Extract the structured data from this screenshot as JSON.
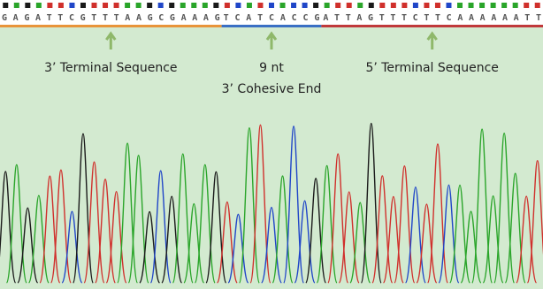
{
  "sequence": {
    "segments": [
      {
        "bases": "GAGATTCGTTTAAGCGAAAG",
        "color": "#e8943a"
      },
      {
        "bases": "TCATCACCG",
        "color": "#3a6fc4"
      },
      {
        "bases": "ATTAGTTTCTTCAAAAAATT",
        "color": "#c0393b"
      }
    ]
  },
  "annotations": [
    {
      "lines": [
        "3’ Terminal Sequence"
      ]
    },
    {
      "lines": [
        "9 nt",
        "3’ Cohesive End"
      ]
    },
    {
      "lines": [
        "5’ Terminal Sequence"
      ]
    }
  ]
}
